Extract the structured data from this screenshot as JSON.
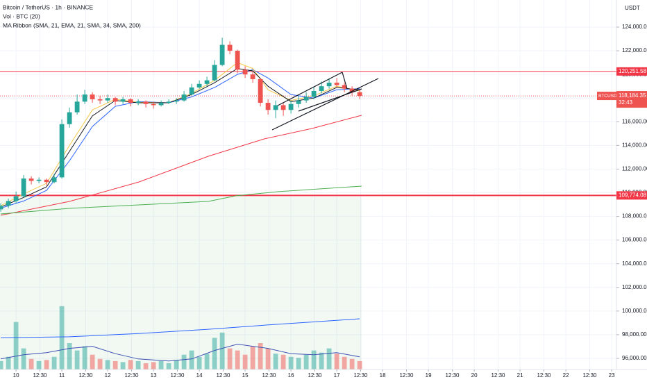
{
  "chart_data": {
    "type": "candlestick",
    "title": "Bitcoin / TetherUS · 1h · BINANCE",
    "volume_label": "Vol · BTC (20)",
    "indicator_label": "MA Ribbon (SMA, 21, EMA, 21, SMA, 34, SMA, 200)",
    "currency": "USDT",
    "xlim": [
      -8.4,
      314.5
    ],
    "ylim": [
      95060,
      126290
    ],
    "grid": true,
    "up_color": "#26a69a",
    "down_color": "#ef5350",
    "xticks": [
      {
        "value": 0,
        "label": "10"
      },
      {
        "value": 12.5,
        "label": "12:30"
      },
      {
        "value": 24,
        "label": "11"
      },
      {
        "value": 36.5,
        "label": "12:30"
      },
      {
        "value": 48,
        "label": "12"
      },
      {
        "value": 60.5,
        "label": "12:30"
      },
      {
        "value": 72,
        "label": "13"
      },
      {
        "value": 84.5,
        "label": "12:30"
      },
      {
        "value": 96,
        "label": "14"
      },
      {
        "value": 108.5,
        "label": "12:30"
      },
      {
        "value": 120,
        "label": "15"
      },
      {
        "value": 132.5,
        "label": "12:30"
      },
      {
        "value": 144,
        "label": "16"
      },
      {
        "value": 156.5,
        "label": "12:30"
      },
      {
        "value": 168,
        "label": "17"
      },
      {
        "value": 180.5,
        "label": "12:30"
      },
      {
        "value": 192,
        "label": "18"
      },
      {
        "value": 204.5,
        "label": "12:30"
      },
      {
        "value": 216,
        "label": "19"
      },
      {
        "value": 228.5,
        "label": "12:30"
      },
      {
        "value": 240,
        "label": "20"
      },
      {
        "value": 252.5,
        "label": "12:30"
      },
      {
        "value": 264,
        "label": "21"
      },
      {
        "value": 276.5,
        "label": "12:30"
      },
      {
        "value": 288,
        "label": "22"
      },
      {
        "value": 300.5,
        "label": "12:30"
      },
      {
        "value": 312,
        "label": "23"
      }
    ],
    "yticks": [
      {
        "value": 96000,
        "label": "96,000.00"
      },
      {
        "value": 98000,
        "label": "98,000.00"
      },
      {
        "value": 100000,
        "label": "100,000.00"
      },
      {
        "value": 102000,
        "label": "102,000.00"
      },
      {
        "value": 104000,
        "label": "104,000.00"
      },
      {
        "value": 106000,
        "label": "106,000.00"
      },
      {
        "value": 108000,
        "label": "108,000.00"
      },
      {
        "value": 110000,
        "label": "110,000.00"
      },
      {
        "value": 112000,
        "label": "112,000.00"
      },
      {
        "value": 114000,
        "label": "114,000.00"
      },
      {
        "value": 116000,
        "label": "116,000.00"
      },
      {
        "value": 118000,
        "label": "118,000.00"
      },
      {
        "value": 120000,
        "label": "120,000.00"
      },
      {
        "value": 122000,
        "label": "122,000.00"
      },
      {
        "value": 124000,
        "label": "124,000.00"
      }
    ],
    "x": [
      -8,
      -4,
      0,
      4,
      8,
      12,
      16,
      20,
      24,
      28,
      32,
      36,
      40,
      44,
      48,
      52,
      56,
      60,
      64,
      68,
      72,
      76,
      80,
      84,
      88,
      92,
      96,
      100,
      104,
      108,
      112,
      116,
      120,
      124,
      128,
      132,
      136,
      140,
      144,
      148,
      152,
      156,
      160,
      164,
      168,
      172,
      176,
      180
    ],
    "ohlc": {
      "open": [
        108600,
        108900,
        109300,
        109700,
        111200,
        111000,
        111100,
        110900,
        111300,
        115800,
        116800,
        117700,
        118300,
        117900,
        117800,
        118000,
        117700,
        117900,
        117600,
        117700,
        117500,
        117400,
        117600,
        117700,
        117800,
        118300,
        118900,
        119200,
        119500,
        120800,
        122500,
        122000,
        120400,
        120000,
        119600,
        117600,
        117000,
        117400,
        117000,
        117500,
        117800,
        118100,
        118600,
        119000,
        119300,
        119100,
        118800,
        118500
      ],
      "high": [
        109100,
        109500,
        110100,
        111500,
        111400,
        111300,
        111200,
        111600,
        116200,
        117200,
        118300,
        118700,
        118500,
        118200,
        118300,
        118100,
        118100,
        118000,
        117900,
        117800,
        117700,
        117800,
        117900,
        118000,
        118600,
        119200,
        119500,
        119800,
        121200,
        123100,
        122800,
        122100,
        120700,
        120200,
        119700,
        117900,
        117800,
        117600,
        117800,
        118200,
        118500,
        118900,
        119400,
        119600,
        119700,
        119300,
        119000,
        118700
      ],
      "low": [
        108400,
        108700,
        109100,
        109600,
        110700,
        110800,
        110600,
        110800,
        111200,
        115500,
        116600,
        117500,
        117600,
        117500,
        117600,
        117400,
        117500,
        117300,
        117400,
        117200,
        117100,
        117300,
        117500,
        117500,
        117700,
        118200,
        118800,
        119000,
        119400,
        120700,
        121700,
        120100,
        119700,
        119300,
        117300,
        116600,
        116300,
        116500,
        116700,
        117200,
        117600,
        117900,
        118400,
        118800,
        118900,
        118500,
        118200,
        117900
      ],
      "close": [
        108900,
        109300,
        109700,
        111200,
        111000,
        111100,
        110900,
        111300,
        115800,
        116800,
        117700,
        118300,
        117900,
        117800,
        118000,
        117700,
        117900,
        117600,
        117700,
        117500,
        117400,
        117600,
        117700,
        117800,
        118300,
        118900,
        119200,
        119500,
        120800,
        122500,
        122000,
        120400,
        120000,
        119600,
        117600,
        117000,
        117400,
        117000,
        117500,
        117800,
        118100,
        118600,
        119000,
        119300,
        119100,
        118800,
        118500,
        118184.35
      ]
    },
    "series": [
      {
        "color": "#f23645",
        "x": [
          -8,
          28,
          64.4,
          100.7,
          130,
          155,
          181
        ],
        "values": [
          108092,
          109265,
          110909,
          113081,
          114549,
          115429,
          116545
        ]
      },
      {
        "color": "#4caf50",
        "x": [
          -8,
          28,
          64.4,
          100.7,
          115,
          137,
          181
        ],
        "values": [
          108209,
          108678,
          108972,
          109265,
          109735,
          110087,
          110557
        ]
      },
      {
        "color": "#2962ff",
        "x": [
          -8,
          4,
          16,
          28,
          40,
          52,
          64,
          80,
          92,
          104,
          116,
          124,
          132,
          144,
          156,
          168,
          180
        ],
        "values": [
          108700,
          109300,
          110200,
          112700,
          115600,
          117300,
          117700,
          117600,
          118100,
          118900,
          120000,
          120400,
          119700,
          118300,
          118000,
          118700,
          118800
        ]
      },
      {
        "color": "#f7c948",
        "x": [
          -8,
          4,
          16,
          28,
          40,
          52,
          64,
          80,
          92,
          104,
          116,
          124,
          132,
          144,
          156,
          168,
          180
        ],
        "values": [
          108900,
          109900,
          110800,
          114000,
          117000,
          117900,
          117650,
          117600,
          118400,
          119500,
          121000,
          120500,
          118700,
          117800,
          118200,
          119000,
          118600
        ]
      },
      {
        "color": "#131722",
        "x": [
          -8,
          4,
          16,
          28,
          40,
          52,
          64,
          80,
          92,
          104,
          116,
          124,
          132,
          144,
          156,
          168,
          180
        ],
        "values": [
          108800,
          109600,
          110500,
          113500,
          116500,
          117800,
          117600,
          117600,
          118300,
          119300,
          120500,
          120300,
          119000,
          117700,
          118000,
          118900,
          118700
        ]
      }
    ],
    "levels": [
      {
        "value": 120251.58,
        "label": "120,251.58"
      },
      {
        "value": 109774.08,
        "label": "109,774.08"
      }
    ],
    "level_color": "#f23645",
    "symbol": "BTCUSDT",
    "last_price": {
      "value": 118184.35,
      "label": "118,184.35"
    },
    "countdown": "32:43",
    "volume": {
      "vlim": [
        0,
        100
      ],
      "values": [
        8,
        12,
        45,
        20,
        10,
        8,
        9,
        12,
        60,
        25,
        18,
        22,
        14,
        10,
        9,
        8,
        7,
        9,
        8,
        6,
        7,
        8,
        6,
        9,
        14,
        18,
        12,
        15,
        30,
        35,
        20,
        18,
        14,
        22,
        25,
        20,
        15,
        14,
        12,
        11,
        14,
        18,
        16,
        20,
        15,
        12,
        10,
        8
      ],
      "lines": [
        {
          "color": "#2962ff",
          "x": [
            -8,
            28,
            64,
            100,
            130,
            155,
            180
          ],
          "values": [
            30,
            31,
            34,
            38,
            42,
            45,
            48
          ]
        },
        {
          "color": "#3f51b5",
          "x": [
            -8,
            4,
            16,
            28,
            40,
            52,
            64,
            80,
            92,
            104,
            116,
            124,
            132,
            144,
            156,
            168,
            180
          ],
          "values": [
            10,
            14,
            16,
            20,
            22,
            15,
            10,
            8,
            10,
            18,
            24,
            22,
            20,
            15,
            14,
            16,
            12
          ]
        }
      ]
    }
  }
}
